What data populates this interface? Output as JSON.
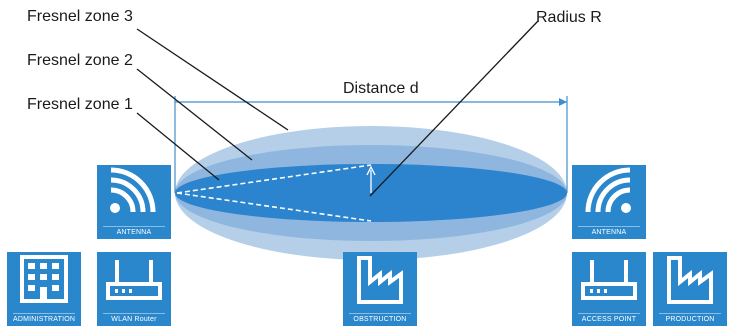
{
  "labels": {
    "zone3": "Fresnel zone 3",
    "zone2": "Fresnel zone 2",
    "zone1": "Fresnel zone 1",
    "radius": "Radius R",
    "distance": "Distance d"
  },
  "tiles": {
    "antenna_left": "ANTENNA",
    "antenna_right": "ANTENNA",
    "administration": "ADMINISTRATION",
    "wlan_router": "WLAN Router",
    "obstruction": "OBSTRUCTION",
    "access_point": "ACCESS POINT",
    "production": "PRODUCTION"
  },
  "colors": {
    "tile_blue": "#2a87cc",
    "zone3_fill": "#b5cfe9",
    "zone2_fill": "#8fb6de",
    "zone1_fill": "#2b84cd",
    "line": "#1a1a1a",
    "dim_line": "#3f8fcf"
  }
}
